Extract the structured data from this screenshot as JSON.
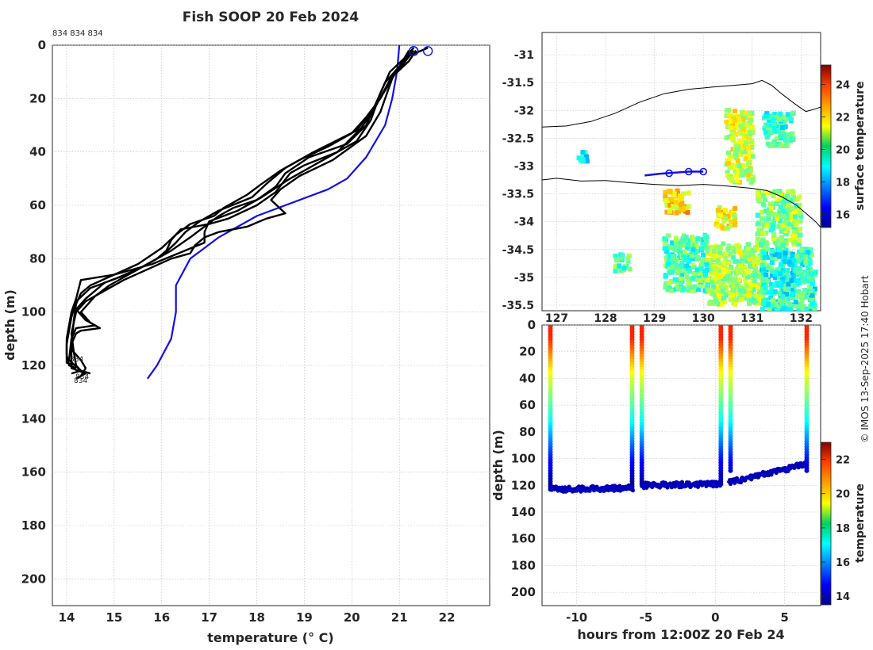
{
  "title": "Fish SOOP 20 Feb 2024",
  "credit": "© IMOS 13-Sep-2025 17:40 Hobart",
  "colors": {
    "profile": "#000000",
    "climatology": "#1010e6",
    "track": "#1010e6",
    "coast": "#000000",
    "grid": "#b8b8b8"
  },
  "chart_data": [
    {
      "id": "profiles",
      "type": "line",
      "title": "Fish SOOP 20 Feb 2024",
      "xlabel": "temperature (° C)",
      "ylabel": "depth (m)",
      "xlim": [
        13.7,
        22.9
      ],
      "ylim": [
        210,
        0
      ],
      "xticks": [
        14,
        15,
        16,
        17,
        18,
        19,
        20,
        21,
        22
      ],
      "yticks": [
        0,
        20,
        40,
        60,
        80,
        100,
        120,
        140,
        160,
        180,
        200
      ],
      "grid": true,
      "annotation_top": "834 834 834",
      "bottom_labels": [
        "834",
        "834",
        "834"
      ],
      "series": [
        {
          "name": "climatology",
          "color": "blue",
          "points": [
            [
              15.7,
              125
            ],
            [
              15.9,
              120
            ],
            [
              16.2,
              110
            ],
            [
              16.3,
              100
            ],
            [
              16.3,
              90
            ],
            [
              16.6,
              80
            ],
            [
              17.2,
              72
            ],
            [
              18.0,
              64
            ],
            [
              18.9,
              58
            ],
            [
              19.5,
              54
            ],
            [
              19.9,
              50
            ],
            [
              20.3,
              42
            ],
            [
              20.7,
              30
            ],
            [
              20.85,
              20
            ],
            [
              20.95,
              10
            ],
            [
              21.0,
              0
            ]
          ]
        },
        {
          "name": "profile 1",
          "color": "black",
          "points": [
            [
              21.6,
              1
            ],
            [
              21.2,
              4
            ],
            [
              20.9,
              10
            ],
            [
              20.8,
              15
            ],
            [
              20.6,
              25
            ],
            [
              20.3,
              34
            ],
            [
              19.6,
              43
            ],
            [
              18.9,
              49
            ],
            [
              18.5,
              54
            ],
            [
              18.3,
              58
            ],
            [
              18.6,
              63
            ],
            [
              18.2,
              65
            ],
            [
              17.8,
              68
            ],
            [
              17.2,
              70
            ],
            [
              16.9,
              72
            ],
            [
              16.7,
              75
            ],
            [
              16.6,
              78
            ],
            [
              16.2,
              80
            ],
            [
              15.7,
              84
            ],
            [
              15.2,
              88
            ],
            [
              14.8,
              92
            ],
            [
              14.4,
              96
            ],
            [
              14.2,
              100
            ],
            [
              14.1,
              108
            ],
            [
              14.15,
              115
            ],
            [
              14.2,
              120
            ],
            [
              14.3,
              122
            ],
            [
              14.1,
              123
            ]
          ]
        },
        {
          "name": "profile 2",
          "color": "black",
          "points": [
            [
              21.3,
              1
            ],
            [
              21.1,
              5
            ],
            [
              20.8,
              10
            ],
            [
              20.6,
              18
            ],
            [
              20.4,
              28
            ],
            [
              20.1,
              36
            ],
            [
              19.3,
              44
            ],
            [
              18.7,
              50
            ],
            [
              18.1,
              57
            ],
            [
              17.6,
              62
            ],
            [
              17.0,
              66
            ],
            [
              16.9,
              70
            ],
            [
              16.9,
              74
            ],
            [
              15.8,
              82
            ],
            [
              15.0,
              86
            ],
            [
              14.3,
              88
            ],
            [
              14.2,
              95
            ],
            [
              14.1,
              100
            ],
            [
              14.0,
              110
            ],
            [
              14.0,
              116
            ],
            [
              14.05,
              120
            ],
            [
              14.2,
              121
            ]
          ]
        },
        {
          "name": "profile 3",
          "color": "black",
          "points": [
            [
              21.35,
              2
            ],
            [
              21.2,
              6
            ],
            [
              20.9,
              11
            ],
            [
              20.7,
              17
            ],
            [
              20.4,
              25
            ],
            [
              20.1,
              32
            ],
            [
              19.2,
              40
            ],
            [
              18.6,
              46
            ],
            [
              18.2,
              52
            ],
            [
              17.9,
              57
            ],
            [
              17.2,
              62
            ],
            [
              16.8,
              66
            ],
            [
              16.5,
              70
            ],
            [
              16.3,
              74
            ],
            [
              16.0,
              79
            ],
            [
              15.6,
              83
            ],
            [
              15.1,
              87
            ],
            [
              14.5,
              91
            ],
            [
              14.2,
              96
            ],
            [
              14.1,
              102
            ],
            [
              14.0,
              112
            ],
            [
              14.0,
              119
            ],
            [
              14.2,
              120
            ]
          ]
        },
        {
          "name": "profile 4",
          "color": "black",
          "points": [
            [
              21.2,
              2
            ],
            [
              21.0,
              8
            ],
            [
              20.7,
              14
            ],
            [
              20.5,
              22
            ],
            [
              20.3,
              30
            ],
            [
              19.9,
              37
            ],
            [
              19.1,
              42
            ],
            [
              18.6,
              48
            ],
            [
              18.4,
              53
            ],
            [
              18.0,
              58
            ],
            [
              17.5,
              61
            ],
            [
              17.2,
              64
            ],
            [
              16.9,
              68
            ],
            [
              16.6,
              72
            ],
            [
              16.2,
              77
            ],
            [
              15.8,
              81
            ],
            [
              15.3,
              86
            ],
            [
              14.9,
              90
            ],
            [
              14.6,
              94
            ],
            [
              14.4,
              98
            ],
            [
              14.3,
              100
            ],
            [
              14.5,
              104
            ],
            [
              14.7,
              106
            ],
            [
              14.3,
              107
            ],
            [
              14.2,
              108
            ],
            [
              14.1,
              112
            ],
            [
              14.1,
              121
            ],
            [
              14.4,
              123
            ],
            [
              14.2,
              125
            ]
          ]
        },
        {
          "name": "profile 5",
          "color": "black",
          "points": [
            [
              21.25,
              3
            ],
            [
              21.05,
              7
            ],
            [
              20.85,
              12
            ],
            [
              20.6,
              20
            ],
            [
              20.3,
              27
            ],
            [
              20.0,
              33
            ],
            [
              19.5,
              38
            ],
            [
              18.9,
              43
            ],
            [
              18.5,
              47
            ],
            [
              18.1,
              52
            ],
            [
              17.8,
              56
            ],
            [
              17.3,
              61
            ],
            [
              17.1,
              64
            ],
            [
              16.6,
              67
            ],
            [
              16.3,
              71
            ],
            [
              16.0,
              76
            ],
            [
              15.5,
              82
            ],
            [
              15.0,
              86
            ],
            [
              14.5,
              90
            ],
            [
              14.3,
              93
            ],
            [
              14.2,
              97
            ],
            [
              14.15,
              103
            ],
            [
              14.1,
              114
            ],
            [
              14.3,
              118
            ],
            [
              14.4,
              121
            ],
            [
              14.3,
              124
            ]
          ]
        },
        {
          "name": "profile 6",
          "color": "black",
          "points": [
            [
              21.3,
              2
            ],
            [
              21.0,
              9
            ],
            [
              20.8,
              13
            ],
            [
              20.5,
              23
            ],
            [
              20.2,
              31
            ],
            [
              19.7,
              40
            ],
            [
              19.0,
              45
            ],
            [
              18.7,
              48
            ],
            [
              18.4,
              55
            ],
            [
              18.0,
              60
            ],
            [
              17.4,
              65
            ],
            [
              17.0,
              67
            ],
            [
              16.4,
              69
            ],
            [
              16.2,
              73
            ],
            [
              16.1,
              77
            ],
            [
              15.9,
              80
            ],
            [
              15.4,
              85
            ],
            [
              14.8,
              89
            ],
            [
              14.4,
              95
            ],
            [
              14.2,
              99
            ],
            [
              14.4,
              103
            ],
            [
              14.6,
              105
            ],
            [
              14.2,
              106
            ],
            [
              14.1,
              110
            ],
            [
              14.05,
              118
            ],
            [
              14.3,
              122
            ],
            [
              14.5,
              123
            ]
          ]
        }
      ],
      "markers": [
        [
          21.3,
          1
        ],
        [
          21.3,
          1
        ],
        [
          21.6,
          1
        ]
      ]
    },
    {
      "id": "map",
      "type": "heatmap",
      "xticks": [
        127,
        128,
        129,
        130,
        131,
        132
      ],
      "yticks": [
        -31,
        -31.5,
        -32,
        -32.5,
        -33,
        -33.5,
        -34,
        -34.5,
        -35,
        -35.5
      ],
      "xlim": [
        126.7,
        132.4
      ],
      "ylim": [
        -35.6,
        -30.6
      ],
      "colorbar_label": "surface temperature",
      "colorbar_ticks": [
        16,
        18,
        20,
        22,
        24
      ],
      "colorbar_range": [
        15.2,
        25.2
      ],
      "track": [
        [
          128.8,
          -33.17
        ],
        [
          129.1,
          -33.14
        ],
        [
          129.4,
          -33.12
        ],
        [
          129.7,
          -33.1
        ],
        [
          130.0,
          -33.1
        ]
      ],
      "track_markers": [
        [
          129.3,
          -33.13
        ],
        [
          129.7,
          -33.1
        ],
        [
          130.0,
          -33.1
        ]
      ],
      "coast": [
        [
          126.7,
          -32.3
        ],
        [
          127.2,
          -32.28
        ],
        [
          127.7,
          -32.2
        ],
        [
          128.2,
          -32.05
        ],
        [
          128.7,
          -31.85
        ],
        [
          129.2,
          -31.7
        ],
        [
          129.7,
          -31.62
        ],
        [
          130.2,
          -31.58
        ],
        [
          130.6,
          -31.55
        ],
        [
          131.0,
          -31.52
        ],
        [
          131.2,
          -31.46
        ],
        [
          131.4,
          -31.55
        ],
        [
          131.6,
          -31.7
        ],
        [
          131.9,
          -31.9
        ],
        [
          132.1,
          -32.02
        ],
        [
          132.3,
          -31.97
        ],
        [
          132.4,
          -31.94
        ]
      ],
      "shelf": [
        [
          126.7,
          -33.25
        ],
        [
          127.0,
          -33.22
        ],
        [
          127.5,
          -33.27
        ],
        [
          128.0,
          -33.26
        ],
        [
          128.5,
          -33.3
        ],
        [
          129.0,
          -33.33
        ],
        [
          129.5,
          -33.35
        ],
        [
          130.0,
          -33.33
        ],
        [
          130.5,
          -33.36
        ],
        [
          131.0,
          -33.4
        ],
        [
          131.3,
          -33.44
        ],
        [
          131.6,
          -33.55
        ],
        [
          131.9,
          -33.7
        ],
        [
          132.1,
          -33.85
        ],
        [
          132.3,
          -34.0
        ],
        [
          132.4,
          -34.1
        ]
      ],
      "sst_patches": [
        {
          "lon": 130.7,
          "lat": -32.6,
          "w": 0.55,
          "h": 1.3,
          "t": 21.0
        },
        {
          "lon": 131.5,
          "lat": -33.9,
          "w": 0.9,
          "h": 1.0,
          "t": 20.3
        },
        {
          "lon": 130.6,
          "lat": -34.9,
          "w": 1.2,
          "h": 1.1,
          "t": 20.6
        },
        {
          "lon": 129.6,
          "lat": -34.7,
          "w": 0.9,
          "h": 1.0,
          "t": 19.7
        },
        {
          "lon": 131.7,
          "lat": -35.0,
          "w": 1.1,
          "h": 1.1,
          "t": 19.3
        },
        {
          "lon": 129.4,
          "lat": -33.6,
          "w": 0.5,
          "h": 0.4,
          "t": 21.8
        },
        {
          "lon": 131.5,
          "lat": -32.3,
          "w": 0.6,
          "h": 0.6,
          "t": 19.5
        },
        {
          "lon": 130.4,
          "lat": -33.9,
          "w": 0.4,
          "h": 0.4,
          "t": 21.4
        },
        {
          "lon": 128.3,
          "lat": -34.7,
          "w": 0.3,
          "h": 0.3,
          "t": 19.6
        },
        {
          "lon": 127.5,
          "lat": -32.8,
          "w": 0.2,
          "h": 0.2,
          "t": 19.0
        }
      ]
    },
    {
      "id": "section",
      "type": "scatter",
      "xlabel": "hours from 12:00Z 20 Feb 24",
      "ylabel": "depth (m)",
      "xlim": [
        -12.5,
        7.6
      ],
      "ylim": [
        210,
        0
      ],
      "xticks": [
        -10,
        -5,
        0,
        5
      ],
      "yticks": [
        0,
        20,
        40,
        60,
        80,
        100,
        120,
        140,
        160,
        180,
        200
      ],
      "colorbar_label": "temperature",
      "colorbar_ticks": [
        14,
        16,
        18,
        20,
        22
      ],
      "colorbar_range": [
        13.5,
        23.0
      ],
      "casts": [
        {
          "t0": -11.9,
          "t1": -5.9,
          "depth_start": 123,
          "depth_end": 122
        },
        {
          "t0": -5.3,
          "t1": 0.4,
          "depth_start": 120,
          "depth_end": 119
        },
        {
          "t0": 1.0,
          "t1": 6.6,
          "depth_start": 118,
          "depth_end": 104
        }
      ],
      "downcast_times": [
        -11.9,
        -6.0,
        -5.3,
        0.4,
        1.1,
        6.6
      ]
    }
  ]
}
